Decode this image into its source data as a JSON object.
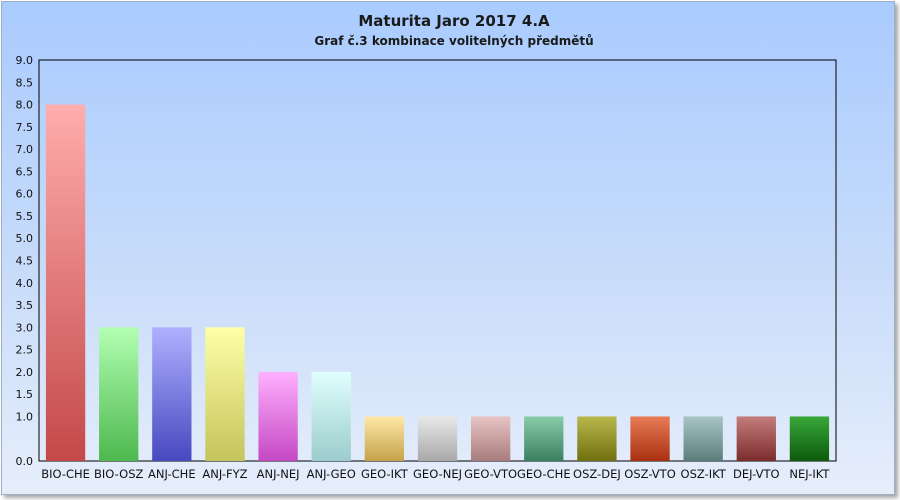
{
  "chart_data": {
    "type": "bar",
    "title": "Maturita Jaro 2017 4.A",
    "subtitle": "Graf č.3 kombinace volitelných předmětů",
    "xlabel": "",
    "ylabel": "",
    "ylim": [
      0,
      9
    ],
    "yticks": [
      "0.0",
      "1.0",
      "1.5",
      "2.0",
      "2.5",
      "3.0",
      "3.5",
      "4.0",
      "4.5",
      "5.0",
      "5.5",
      "6.0",
      "6.5",
      "7.0",
      "7.5",
      "8.0",
      "8.5",
      "9.0"
    ],
    "ytick_values": [
      0,
      1,
      1.5,
      2,
      2.5,
      3,
      3.5,
      4,
      4.5,
      5,
      5.5,
      6,
      6.5,
      7,
      7.5,
      8,
      8.5,
      9
    ],
    "grid": false,
    "legend": "none",
    "categories": [
      "BIO-CHE",
      "BIO-OSZ",
      "ANJ-CHE",
      "ANJ-FYZ",
      "ANJ-NEJ",
      "ANJ-GEO",
      "GEO-IKT",
      "GEO-NEJ",
      "GEO-VTO",
      "GEO-CHE",
      "OSZ-DEJ",
      "OSZ-VTO",
      "OSZ-IKT",
      "DEJ-VTO",
      "NEJ-IKT"
    ],
    "values": [
      8,
      3,
      3,
      3,
      2,
      2,
      1,
      1,
      1,
      1,
      1,
      1,
      1,
      1,
      1
    ],
    "colors": [
      [
        "#ffadad",
        "#c44848"
      ],
      [
        "#b2ffb2",
        "#4db84d"
      ],
      [
        "#b0b0ff",
        "#4848c0"
      ],
      [
        "#ffffa8",
        "#c4c45c"
      ],
      [
        "#ffb0ff",
        "#c448c4"
      ],
      [
        "#e0ffff",
        "#9ccccc"
      ],
      [
        "#ffe8a8",
        "#c4a248"
      ],
      [
        "#e8e8e8",
        "#a8a8a8"
      ],
      [
        "#e8c4c4",
        "#a87c7c"
      ],
      [
        "#88ccaa",
        "#3a8060"
      ],
      [
        "#b8b84c",
        "#707010"
      ],
      [
        "#e87c56",
        "#a83010"
      ],
      [
        "#a8c4c4",
        "#5c7c7c"
      ],
      [
        "#c47c7c",
        "#7c2c2c"
      ],
      [
        "#38a838",
        "#0c5a0c"
      ]
    ]
  }
}
